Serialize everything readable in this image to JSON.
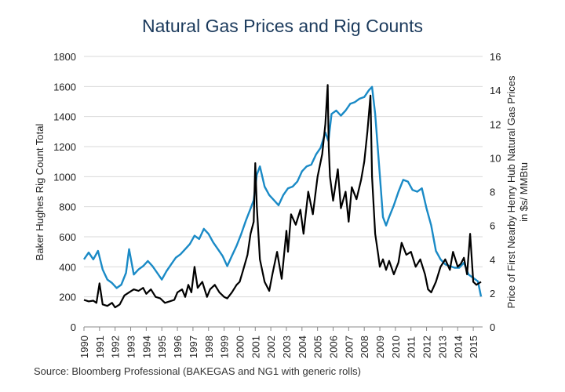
{
  "title": "Natural Gas Prices and Rig Counts",
  "source": "Source: Bloomberg Professional (BAKEGAS and NG1 with generic rolls)",
  "colors": {
    "rig_count": "#000000",
    "gas_price": "#1a8ac6",
    "grid": "#d9d9d9",
    "title": "#1b3a5c"
  },
  "chart_data": {
    "type": "line",
    "title": "Natural Gas Prices and Rig Counts",
    "xlabel": "",
    "x_ticks": [
      "1990",
      "1991",
      "1992",
      "1993",
      "1994",
      "1995",
      "1996",
      "1997",
      "1998",
      "1999",
      "2000",
      "2001",
      "2002",
      "2003",
      "2004",
      "2005",
      "2006",
      "2007",
      "2008",
      "2009",
      "2010",
      "2011",
      "2012",
      "2013",
      "2014",
      "2015"
    ],
    "xlim": [
      1990,
      2015.6
    ],
    "y_left": {
      "label": "Baker Hughes Rig Count Total",
      "lim": [
        0,
        1800
      ],
      "ticks": [
        "0",
        "200",
        "400",
        "600",
        "800",
        "1000",
        "1200",
        "1400",
        "1600",
        "1800"
      ]
    },
    "y_right": {
      "label_line1": "Price of First Nearby Henry Hub Natural Gas Prices",
      "label_line2": "in $s/ MMBtu",
      "lim": [
        0,
        16
      ],
      "ticks": [
        "0",
        "2",
        "4",
        "6",
        "8",
        "10",
        "12",
        "14",
        "16"
      ]
    },
    "grid": true,
    "series": [
      {
        "name": "Baker Hughes Rig Count Total",
        "axis": "left",
        "x": [
          1990.0,
          1990.3,
          1990.6,
          1990.8,
          1991.0,
          1991.2,
          1991.5,
          1991.8,
          1992.0,
          1992.3,
          1992.6,
          1992.9,
          1993.2,
          1993.5,
          1993.8,
          1994.0,
          1994.3,
          1994.6,
          1994.9,
          1995.2,
          1995.5,
          1995.8,
          1996.0,
          1996.3,
          1996.5,
          1996.7,
          1996.9,
          1997.1,
          1997.3,
          1997.6,
          1997.9,
          1998.1,
          1998.4,
          1998.7,
          1999.0,
          1999.2,
          1999.5,
          1999.8,
          2000.0,
          2000.2,
          2000.5,
          2000.7,
          2000.9,
          2001.0,
          2001.1,
          2001.3,
          2001.6,
          2001.9,
          2002.1,
          2002.4,
          2002.7,
          2003.0,
          2003.1,
          2003.3,
          2003.6,
          2003.9,
          2004.1,
          2004.4,
          2004.7,
          2005.0,
          2005.3,
          2005.5,
          2005.65,
          2005.72,
          2005.8,
          2006.0,
          2006.3,
          2006.5,
          2006.8,
          2007.0,
          2007.2,
          2007.5,
          2007.8,
          2008.0,
          2008.2,
          2008.4,
          2008.5,
          2008.7,
          2008.9,
          2009.0,
          2009.2,
          2009.4,
          2009.6,
          2009.9,
          2010.2,
          2010.4,
          2010.7,
          2011.0,
          2011.3,
          2011.6,
          2011.9,
          2012.1,
          2012.3,
          2012.6,
          2012.9,
          2013.2,
          2013.5,
          2013.7,
          2014.0,
          2014.2,
          2014.4,
          2014.6,
          2014.8,
          2015.0,
          2015.2,
          2015.5
        ],
        "values": [
          180,
          170,
          175,
          160,
          290,
          150,
          140,
          160,
          130,
          150,
          210,
          230,
          250,
          240,
          260,
          220,
          250,
          200,
          190,
          160,
          170,
          180,
          230,
          250,
          200,
          280,
          230,
          400,
          260,
          300,
          200,
          250,
          280,
          230,
          200,
          190,
          230,
          280,
          300,
          370,
          480,
          620,
          700,
          1090,
          800,
          450,
          300,
          240,
          350,
          500,
          320,
          640,
          500,
          750,
          680,
          780,
          620,
          900,
          750,
          1000,
          1150,
          1350,
          1610,
          1200,
          1000,
          840,
          1050,
          790,
          900,
          700,
          930,
          850,
          980,
          1100,
          1300,
          1540,
          1000,
          620,
          480,
          400,
          450,
          380,
          440,
          350,
          430,
          560,
          480,
          500,
          400,
          450,
          350,
          250,
          230,
          300,
          400,
          450,
          380,
          500,
          400,
          420,
          460,
          350,
          620,
          300,
          280,
          300
        ]
      },
      {
        "name": "Henry Hub Natural Gas Price ($/MMBtu)",
        "axis": "right",
        "x": [
          1990.0,
          1990.3,
          1990.6,
          1990.9,
          1991.2,
          1991.5,
          1991.8,
          1992.1,
          1992.4,
          1992.7,
          1992.9,
          1993.2,
          1993.5,
          1993.8,
          1994.1,
          1994.4,
          1994.7,
          1995.0,
          1995.3,
          1995.6,
          1995.9,
          1996.2,
          1996.5,
          1996.8,
          1997.1,
          1997.4,
          1997.7,
          1998.0,
          1998.3,
          1998.6,
          1998.9,
          1999.2,
          1999.5,
          1999.8,
          2000.1,
          2000.4,
          2000.7,
          2000.9,
          2001.1,
          2001.3,
          2001.6,
          2001.9,
          2002.2,
          2002.5,
          2002.8,
          2003.1,
          2003.4,
          2003.7,
          2004.0,
          2004.3,
          2004.6,
          2004.9,
          2005.2,
          2005.5,
          2005.7,
          2005.9,
          2006.2,
          2006.5,
          2006.8,
          2007.1,
          2007.4,
          2007.7,
          2008.0,
          2008.3,
          2008.5,
          2008.7,
          2009.0,
          2009.2,
          2009.4,
          2009.6,
          2009.9,
          2010.2,
          2010.5,
          2010.8,
          2011.1,
          2011.4,
          2011.7,
          2012.0,
          2012.3,
          2012.6,
          2012.9,
          2013.2,
          2013.5,
          2013.8,
          2014.1,
          2014.4,
          2014.7,
          2015.0,
          2015.3,
          2015.5
        ],
        "values": [
          4.0,
          4.4,
          4.0,
          4.5,
          3.4,
          2.8,
          2.6,
          2.3,
          2.5,
          3.2,
          4.6,
          3.1,
          3.4,
          3.6,
          3.9,
          3.6,
          3.2,
          2.8,
          3.3,
          3.7,
          4.1,
          4.3,
          4.6,
          4.9,
          5.4,
          5.2,
          5.8,
          5.5,
          5.0,
          4.6,
          4.2,
          3.6,
          4.2,
          4.8,
          5.5,
          6.3,
          7.0,
          7.5,
          9.0,
          9.5,
          8.3,
          7.8,
          7.5,
          7.2,
          7.8,
          8.2,
          8.3,
          8.6,
          9.2,
          9.5,
          9.6,
          10.2,
          10.6,
          11.5,
          11.0,
          12.6,
          12.8,
          12.5,
          12.8,
          13.2,
          13.3,
          13.5,
          13.6,
          14.0,
          14.2,
          12.6,
          9.0,
          6.5,
          6.0,
          6.5,
          7.2,
          8.0,
          8.7,
          8.6,
          8.1,
          8.0,
          8.2,
          7.0,
          6.0,
          4.5,
          4.0,
          3.7,
          3.6,
          3.5,
          3.5,
          3.8,
          3.1,
          2.9,
          2.7,
          1.8
        ]
      }
    ]
  }
}
